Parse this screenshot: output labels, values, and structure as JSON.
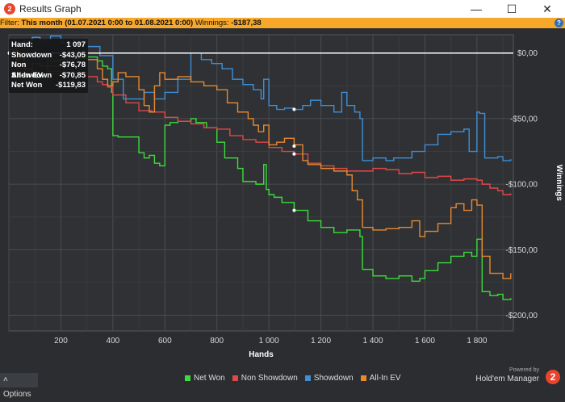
{
  "window": {
    "title": "Results Graph",
    "app_icon_glyph": "2",
    "minimize_glyph": "—",
    "maximize_glyph": "☐",
    "close_glyph": "✕"
  },
  "filter": {
    "prefix": "Filter: ",
    "range": "This month (01.07.2021 0:00 to 01.08.2021 0:00)",
    "winnings_label": "Winnings:",
    "winnings_value": "-$187,38",
    "info_glyph": "?"
  },
  "tooltip": {
    "rows": [
      {
        "label": "Hand:",
        "value": "1 097"
      },
      {
        "label": "Showdown",
        "value": "-$43,05"
      },
      {
        "label": "Non Showdown",
        "value": "-$76,78"
      },
      {
        "label": "All-In EV",
        "value": "-$70,85"
      },
      {
        "label": "Net Won",
        "value": "-$119,83"
      }
    ]
  },
  "options": {
    "label": "Options",
    "icon": "caret-up-icon",
    "glyph": "˄"
  },
  "brand": {
    "powered_by": "Powered by",
    "name": "Hold'em Manager",
    "logo_glyph": "2"
  },
  "colors": {
    "net_won": "#3ddc3d",
    "non_showdown": "#e04848",
    "showdown": "#3f8fd6",
    "all_in_ev": "#e8892f",
    "brand": "#e8452c",
    "filter_bar": "#f7a72a",
    "background": "#2b2d30"
  },
  "chart_data": {
    "type": "line",
    "xlabel": "Hands",
    "ylabel": "Winnings",
    "xlim": [
      0,
      1940
    ],
    "ylim": [
      -212,
      14
    ],
    "xticks": [
      200,
      400,
      600,
      800,
      1000,
      1200,
      1400,
      1600,
      1800
    ],
    "xtick_labels": [
      "200",
      "400",
      "600",
      "800",
      "1 000",
      "1 200",
      "1 400",
      "1 600",
      "1 800"
    ],
    "yticks": [
      0,
      -50,
      -100,
      -150,
      -200
    ],
    "ytick_labels": [
      "$0,00",
      "-$50,00",
      "-$100,00",
      "-$150,00",
      "-$200,00"
    ],
    "grid": true,
    "zero_line": true,
    "legend_position": "bottom",
    "hover_hand": 1097,
    "series": [
      {
        "name": "Net Won",
        "color": "#3ddc3d",
        "x": [
          0,
          30,
          60,
          90,
          110,
          150,
          200,
          250,
          300,
          340,
          360,
          380,
          395,
          400,
          420,
          450,
          500,
          520,
          540,
          560,
          580,
          600,
          620,
          650,
          700,
          720,
          760,
          800,
          830,
          880,
          900,
          950,
          980,
          990,
          1000,
          1020,
          1050,
          1097,
          1150,
          1200,
          1250,
          1300,
          1350,
          1360,
          1400,
          1450,
          1500,
          1550,
          1580,
          1600,
          1650,
          1700,
          1750,
          1780,
          1800,
          1820,
          1850,
          1880,
          1900,
          1930
        ],
        "y": [
          3,
          -2,
          -12,
          -20,
          -19,
          -6,
          -5,
          -4,
          -3,
          -6,
          -10,
          -12,
          -30,
          -63,
          -64,
          -64,
          -76,
          -80,
          -78,
          -84,
          -86,
          -55,
          -53,
          -52,
          -50,
          -53,
          -57,
          -68,
          -80,
          -88,
          -98,
          -100,
          -85,
          -104,
          -108,
          -110,
          -114,
          -120,
          -128,
          -133,
          -137,
          -135,
          -140,
          -165,
          -170,
          -172,
          -170,
          -174,
          -172,
          -166,
          -160,
          -155,
          -152,
          -155,
          -142,
          -182,
          -185,
          -184,
          -188,
          -187
        ]
      },
      {
        "name": "Non Showdown",
        "color": "#e04848",
        "x": [
          0,
          30,
          60,
          90,
          110,
          150,
          200,
          250,
          300,
          340,
          360,
          380,
          400,
          450,
          500,
          550,
          600,
          650,
          700,
          750,
          800,
          850,
          900,
          950,
          1000,
          1050,
          1097,
          1150,
          1200,
          1250,
          1300,
          1350,
          1400,
          1450,
          1500,
          1550,
          1600,
          1650,
          1700,
          1750,
          1800,
          1820,
          1850,
          1880,
          1900,
          1930
        ],
        "y": [
          3,
          -12,
          -15,
          -18,
          -17,
          -14,
          -16,
          -15,
          -18,
          -22,
          -24,
          -26,
          -32,
          -38,
          -44,
          -45,
          -49,
          -52,
          -54,
          -57,
          -58,
          -63,
          -66,
          -68,
          -72,
          -75,
          -77,
          -84,
          -86,
          -88,
          -90,
          -90,
          -88,
          -89,
          -92,
          -91,
          -95,
          -94,
          -97,
          -96,
          -97,
          -100,
          -103,
          -105,
          -108,
          -107
        ]
      },
      {
        "name": "Showdown",
        "color": "#3f8fd6",
        "x": [
          0,
          30,
          60,
          90,
          120,
          160,
          200,
          250,
          300,
          350,
          400,
          440,
          480,
          520,
          560,
          600,
          650,
          700,
          740,
          780,
          820,
          860,
          900,
          940,
          970,
          980,
          1000,
          1030,
          1060,
          1097,
          1130,
          1160,
          1200,
          1250,
          1280,
          1300,
          1330,
          1350,
          1360,
          1400,
          1450,
          1480,
          1500,
          1550,
          1600,
          1650,
          1700,
          1750,
          1770,
          1800,
          1810,
          1830,
          1850,
          1880,
          1900,
          1930
        ],
        "y": [
          2,
          6,
          9,
          12,
          10,
          13,
          8,
          10,
          5,
          -2,
          -20,
          -35,
          -35,
          -30,
          -35,
          -30,
          -20,
          0,
          -5,
          -8,
          -12,
          -20,
          -24,
          -28,
          -35,
          -20,
          -40,
          -43,
          -42,
          -43,
          -40,
          -36,
          -40,
          -45,
          -30,
          -40,
          -45,
          -50,
          -82,
          -80,
          -82,
          -80,
          -80,
          -75,
          -70,
          -62,
          -60,
          -58,
          -75,
          -45,
          -46,
          -80,
          -80,
          -79,
          -82,
          -81
        ]
      },
      {
        "name": "All-In EV",
        "color": "#e8892f",
        "x": [
          0,
          30,
          60,
          90,
          120,
          150,
          200,
          250,
          300,
          340,
          360,
          380,
          400,
          420,
          450,
          500,
          520,
          540,
          560,
          580,
          600,
          650,
          700,
          750,
          800,
          840,
          880,
          920,
          940,
          960,
          980,
          1000,
          1030,
          1060,
          1097,
          1130,
          1150,
          1200,
          1250,
          1300,
          1320,
          1340,
          1360,
          1400,
          1450,
          1500,
          1550,
          1580,
          1600,
          1650,
          1700,
          1720,
          1750,
          1780,
          1800,
          1820,
          1850,
          1880,
          1900,
          1930
        ],
        "y": [
          3,
          -5,
          -12,
          -8,
          -10,
          -10,
          -5,
          -2,
          -5,
          -12,
          -20,
          -25,
          -22,
          -15,
          -18,
          -28,
          -40,
          -45,
          -25,
          -15,
          -20,
          -18,
          -22,
          -25,
          -28,
          -38,
          -45,
          -50,
          -55,
          -60,
          -55,
          -70,
          -68,
          -65,
          -70,
          -82,
          -85,
          -88,
          -90,
          -93,
          -105,
          -112,
          -133,
          -135,
          -134,
          -133,
          -128,
          -140,
          -136,
          -130,
          -118,
          -115,
          -120,
          -112,
          -116,
          -155,
          -168,
          -168,
          -172,
          -168
        ]
      }
    ],
    "markers": [
      {
        "series": "Showdown",
        "x": 1097,
        "y": -43
      },
      {
        "series": "Non Showdown",
        "x": 1097,
        "y": -77
      },
      {
        "series": "All-In EV",
        "x": 1097,
        "y": -71
      },
      {
        "series": "Net Won",
        "x": 1097,
        "y": -120
      }
    ]
  }
}
